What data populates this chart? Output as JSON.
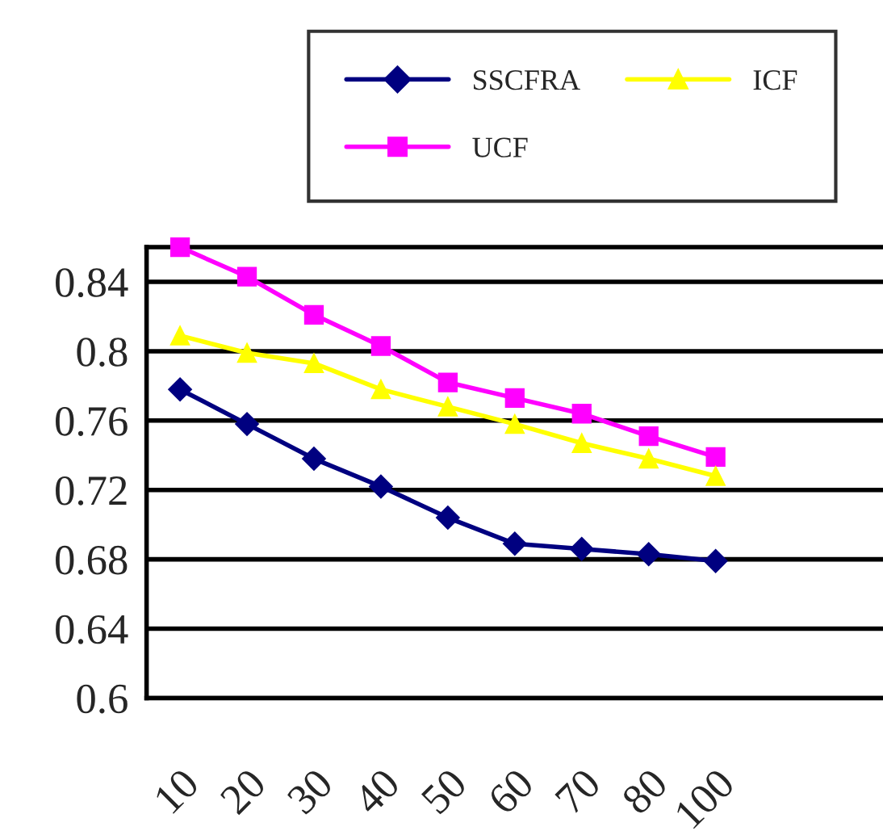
{
  "chart_data": {
    "type": "line",
    "categories": [
      "10",
      "20",
      "30",
      "40",
      "50",
      "60",
      "70",
      "80",
      "100",
      null,
      null
    ],
    "series": [
      {
        "name": "SSCFRA",
        "color": "#000080",
        "marker": "diamond",
        "values": [
          0.778,
          0.758,
          0.738,
          0.722,
          0.704,
          0.689,
          0.686,
          0.683,
          0.679,
          null,
          null
        ]
      },
      {
        "name": "UCF",
        "color": "#ff00ff",
        "marker": "square",
        "values": [
          0.86,
          0.843,
          0.821,
          0.803,
          0.782,
          0.773,
          0.764,
          0.751,
          0.739,
          null,
          null
        ]
      },
      {
        "name": "ICF",
        "color": "#ffff00",
        "marker": "triangle",
        "values": [
          0.809,
          0.799,
          0.793,
          0.778,
          0.768,
          0.758,
          0.747,
          0.738,
          0.728,
          null,
          null
        ]
      }
    ],
    "ylim": [
      0.6,
      0.86
    ],
    "yticks": [
      {
        "value": 0.6,
        "label": "0.6"
      },
      {
        "value": 0.64,
        "label": "0.64"
      },
      {
        "value": 0.68,
        "label": "0.68"
      },
      {
        "value": 0.72,
        "label": "0.72"
      },
      {
        "value": 0.76,
        "label": "0.76"
      },
      {
        "value": 0.8,
        "label": "0.8"
      },
      {
        "value": 0.84,
        "label": "0.84"
      }
    ],
    "grid": "y",
    "legend": "top"
  }
}
